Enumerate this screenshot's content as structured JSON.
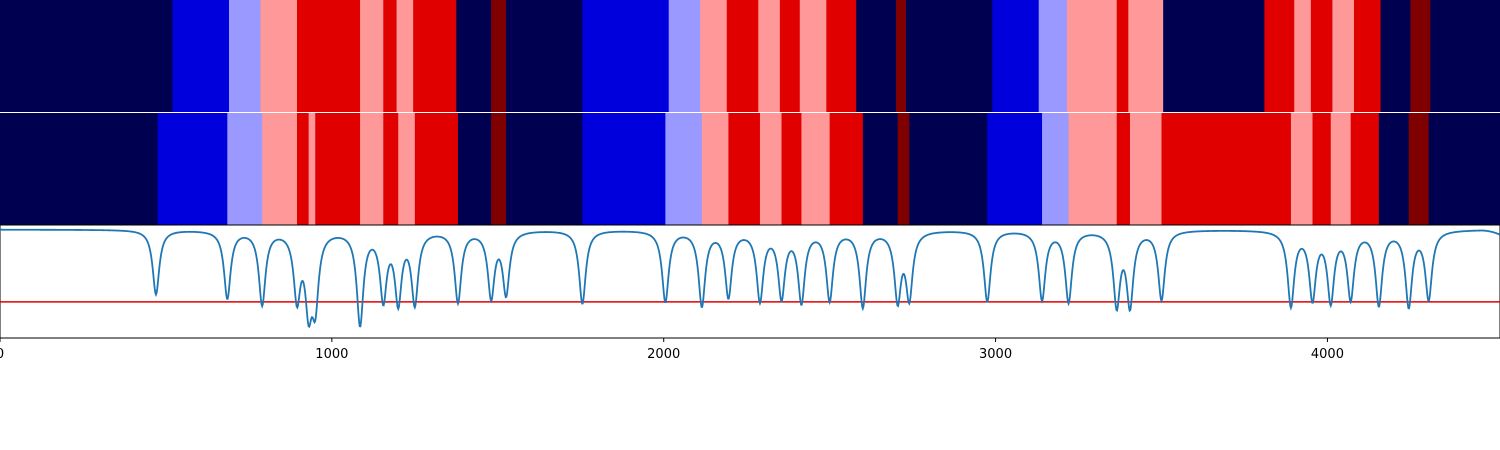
{
  "chart_data": [
    {
      "type": "heatmap",
      "row": 1,
      "xlim": [
        0,
        4520
      ],
      "colors": {
        "state_0": "#000050",
        "state_1": "#0000dd",
        "state_2": "#9999ff",
        "state_3": "#ff9999",
        "state_4": "#e00000",
        "state_5": "#800000"
      },
      "segments": [
        {
          "start": 0,
          "end": 520,
          "state": 0
        },
        {
          "start": 520,
          "end": 690,
          "state": 1
        },
        {
          "start": 690,
          "end": 785,
          "state": 2
        },
        {
          "start": 785,
          "end": 895,
          "state": 3
        },
        {
          "start": 895,
          "end": 1085,
          "state": 4
        },
        {
          "start": 1085,
          "end": 1155,
          "state": 3
        },
        {
          "start": 1155,
          "end": 1195,
          "state": 4
        },
        {
          "start": 1195,
          "end": 1245,
          "state": 3
        },
        {
          "start": 1245,
          "end": 1375,
          "state": 4
        },
        {
          "start": 1375,
          "end": 1480,
          "state": 0
        },
        {
          "start": 1480,
          "end": 1525,
          "state": 5
        },
        {
          "start": 1525,
          "end": 1755,
          "state": 0
        },
        {
          "start": 1755,
          "end": 2015,
          "state": 1
        },
        {
          "start": 2015,
          "end": 2110,
          "state": 2
        },
        {
          "start": 2110,
          "end": 2190,
          "state": 3
        },
        {
          "start": 2190,
          "end": 2285,
          "state": 4
        },
        {
          "start": 2285,
          "end": 2350,
          "state": 3
        },
        {
          "start": 2350,
          "end": 2410,
          "state": 4
        },
        {
          "start": 2410,
          "end": 2490,
          "state": 3
        },
        {
          "start": 2490,
          "end": 2580,
          "state": 4
        },
        {
          "start": 2580,
          "end": 2700,
          "state": 0
        },
        {
          "start": 2700,
          "end": 2730,
          "state": 5
        },
        {
          "start": 2730,
          "end": 2990,
          "state": 0
        },
        {
          "start": 2990,
          "end": 3130,
          "state": 1
        },
        {
          "start": 3130,
          "end": 3215,
          "state": 2
        },
        {
          "start": 3215,
          "end": 3365,
          "state": 3
        },
        {
          "start": 3365,
          "end": 3400,
          "state": 4
        },
        {
          "start": 3400,
          "end": 3505,
          "state": 3
        },
        {
          "start": 3505,
          "end": 3810,
          "state": 0
        },
        {
          "start": 3810,
          "end": 3900,
          "state": 4
        },
        {
          "start": 3900,
          "end": 3950,
          "state": 3
        },
        {
          "start": 3950,
          "end": 4015,
          "state": 4
        },
        {
          "start": 4015,
          "end": 4080,
          "state": 3
        },
        {
          "start": 4080,
          "end": 4160,
          "state": 4
        },
        {
          "start": 4160,
          "end": 4250,
          "state": 0
        },
        {
          "start": 4250,
          "end": 4310,
          "state": 5
        },
        {
          "start": 4310,
          "end": 4520,
          "state": 0
        }
      ]
    },
    {
      "type": "heatmap",
      "row": 2,
      "xlim": [
        0,
        4520
      ],
      "segments": [
        {
          "start": 0,
          "end": 475,
          "state": 0
        },
        {
          "start": 475,
          "end": 685,
          "state": 1
        },
        {
          "start": 685,
          "end": 790,
          "state": 2
        },
        {
          "start": 790,
          "end": 895,
          "state": 3
        },
        {
          "start": 895,
          "end": 930,
          "state": 4
        },
        {
          "start": 930,
          "end": 950,
          "state": 3
        },
        {
          "start": 950,
          "end": 1085,
          "state": 4
        },
        {
          "start": 1085,
          "end": 1155,
          "state": 3
        },
        {
          "start": 1155,
          "end": 1200,
          "state": 4
        },
        {
          "start": 1200,
          "end": 1250,
          "state": 3
        },
        {
          "start": 1250,
          "end": 1380,
          "state": 4
        },
        {
          "start": 1380,
          "end": 1480,
          "state": 0
        },
        {
          "start": 1480,
          "end": 1525,
          "state": 5
        },
        {
          "start": 1525,
          "end": 1755,
          "state": 0
        },
        {
          "start": 1755,
          "end": 2005,
          "state": 1
        },
        {
          "start": 2005,
          "end": 2115,
          "state": 2
        },
        {
          "start": 2115,
          "end": 2195,
          "state": 3
        },
        {
          "start": 2195,
          "end": 2290,
          "state": 4
        },
        {
          "start": 2290,
          "end": 2355,
          "state": 3
        },
        {
          "start": 2355,
          "end": 2415,
          "state": 4
        },
        {
          "start": 2415,
          "end": 2500,
          "state": 3
        },
        {
          "start": 2500,
          "end": 2600,
          "state": 4
        },
        {
          "start": 2600,
          "end": 2705,
          "state": 0
        },
        {
          "start": 2705,
          "end": 2740,
          "state": 5
        },
        {
          "start": 2740,
          "end": 2975,
          "state": 0
        },
        {
          "start": 2975,
          "end": 3140,
          "state": 1
        },
        {
          "start": 3140,
          "end": 3220,
          "state": 2
        },
        {
          "start": 3220,
          "end": 3365,
          "state": 3
        },
        {
          "start": 3365,
          "end": 3405,
          "state": 4
        },
        {
          "start": 3405,
          "end": 3500,
          "state": 3
        },
        {
          "start": 3500,
          "end": 3890,
          "state": 4
        },
        {
          "start": 3890,
          "end": 3955,
          "state": 3
        },
        {
          "start": 3955,
          "end": 4010,
          "state": 4
        },
        {
          "start": 4010,
          "end": 4070,
          "state": 3
        },
        {
          "start": 4070,
          "end": 4155,
          "state": 4
        },
        {
          "start": 4155,
          "end": 4245,
          "state": 0
        },
        {
          "start": 4245,
          "end": 4305,
          "state": 5
        },
        {
          "start": 4305,
          "end": 4520,
          "state": 0
        }
      ]
    },
    {
      "type": "line",
      "row": 3,
      "xlim": [
        0,
        4520
      ],
      "ylim": [
        0,
        1
      ],
      "xticks": [
        {
          "value": 0,
          "label": "0"
        },
        {
          "value": 1000,
          "label": "1000"
        },
        {
          "value": 2000,
          "label": "2000"
        },
        {
          "value": 3000,
          "label": "3000"
        },
        {
          "value": 4000,
          "label": "4000"
        }
      ],
      "baseline": 1.0,
      "threshold": {
        "value": 0.32,
        "color": "#e00000"
      },
      "line_color": "#1f77b4",
      "dips": [
        {
          "x": 470,
          "depth": 0.57
        },
        {
          "x": 685,
          "depth": 0.6
        },
        {
          "x": 790,
          "depth": 0.65
        },
        {
          "x": 895,
          "depth": 0.58
        },
        {
          "x": 930,
          "depth": 0.62
        },
        {
          "x": 950,
          "depth": 0.6
        },
        {
          "x": 1085,
          "depth": 0.82
        },
        {
          "x": 1155,
          "depth": 0.59
        },
        {
          "x": 1200,
          "depth": 0.61
        },
        {
          "x": 1250,
          "depth": 0.63
        },
        {
          "x": 1380,
          "depth": 0.63
        },
        {
          "x": 1480,
          "depth": 0.58
        },
        {
          "x": 1525,
          "depth": 0.55
        },
        {
          "x": 1755,
          "depth": 0.65
        },
        {
          "x": 2005,
          "depth": 0.63
        },
        {
          "x": 2115,
          "depth": 0.66
        },
        {
          "x": 2195,
          "depth": 0.58
        },
        {
          "x": 2290,
          "depth": 0.61
        },
        {
          "x": 2355,
          "depth": 0.58
        },
        {
          "x": 2415,
          "depth": 0.62
        },
        {
          "x": 2500,
          "depth": 0.61
        },
        {
          "x": 2600,
          "depth": 0.67
        },
        {
          "x": 2705,
          "depth": 0.6
        },
        {
          "x": 2740,
          "depth": 0.58
        },
        {
          "x": 2975,
          "depth": 0.63
        },
        {
          "x": 3140,
          "depth": 0.61
        },
        {
          "x": 3220,
          "depth": 0.63
        },
        {
          "x": 3365,
          "depth": 0.65
        },
        {
          "x": 3405,
          "depth": 0.65
        },
        {
          "x": 3500,
          "depth": 0.61
        },
        {
          "x": 3890,
          "depth": 0.66
        },
        {
          "x": 3955,
          "depth": 0.59
        },
        {
          "x": 4010,
          "depth": 0.61
        },
        {
          "x": 4070,
          "depth": 0.59
        },
        {
          "x": 4155,
          "depth": 0.65
        },
        {
          "x": 4245,
          "depth": 0.66
        },
        {
          "x": 4305,
          "depth": 0.6
        }
      ],
      "end_drop": {
        "x": 4520,
        "value": 0.92
      }
    }
  ]
}
